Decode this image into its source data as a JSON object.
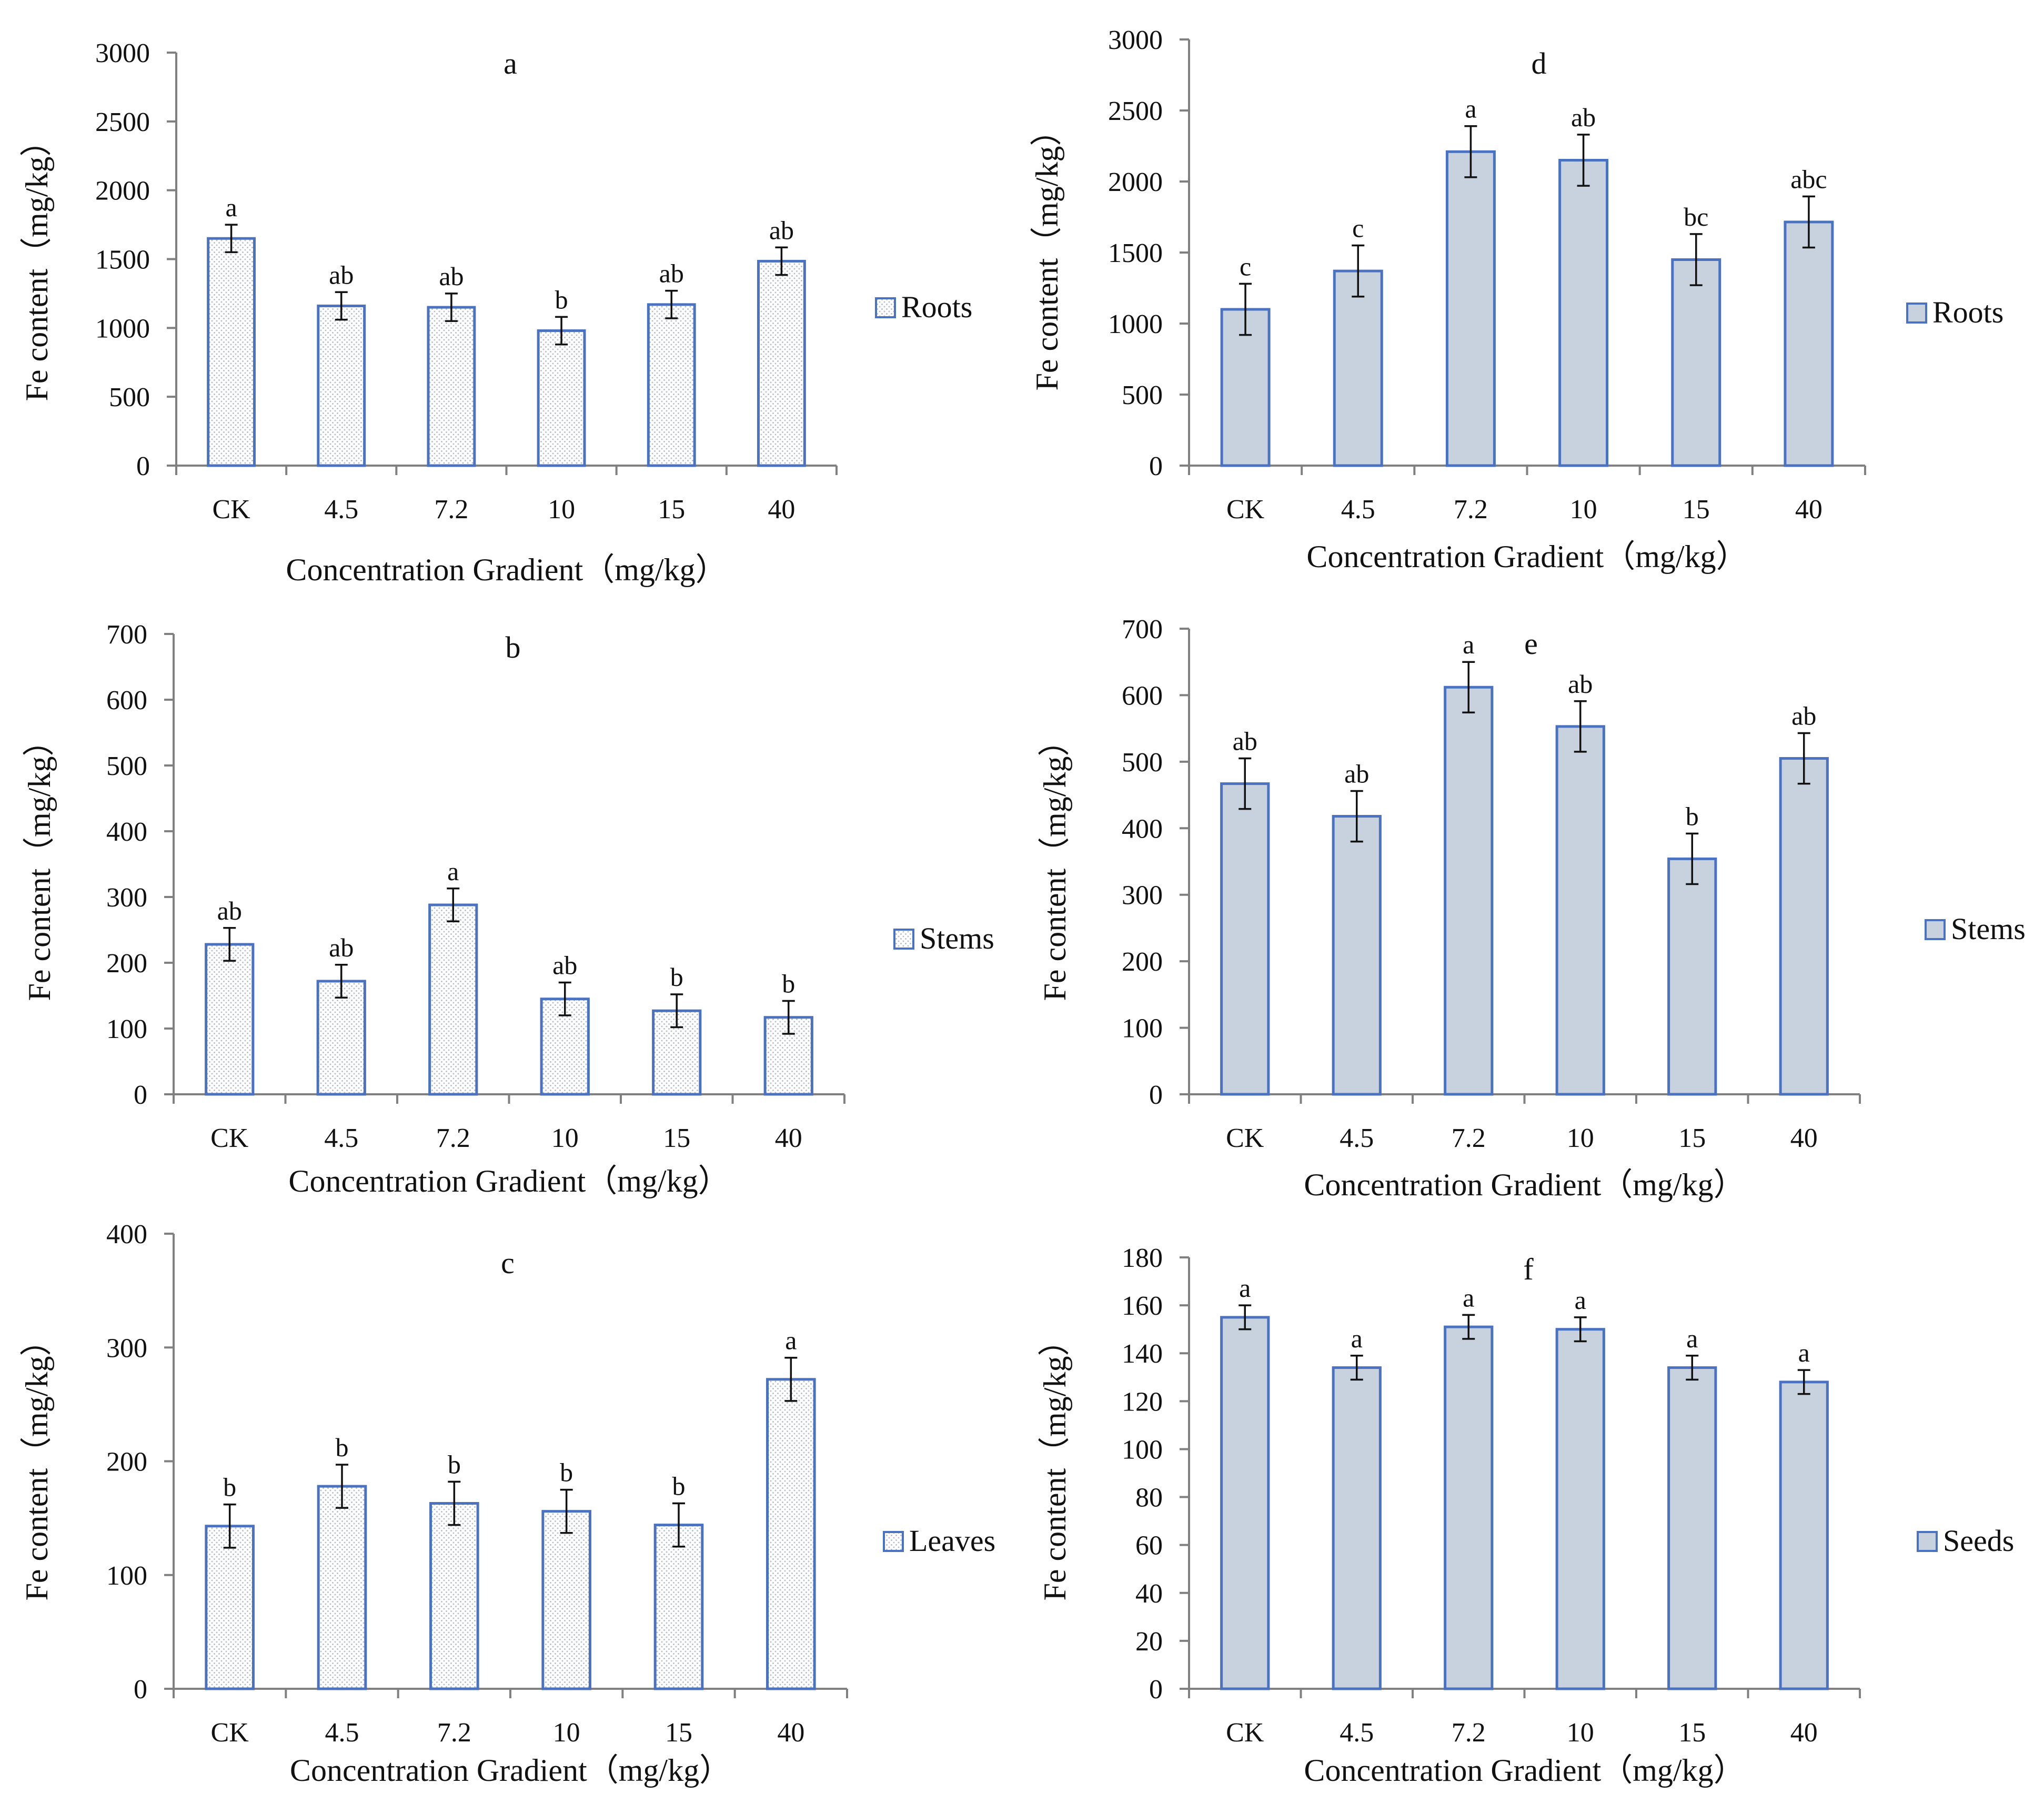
{
  "common": {
    "categories": [
      "CK",
      "4.5",
      "7.2",
      "10",
      "15",
      "40"
    ],
    "xlabel": "Concentration Gradient（mg/kg）",
    "ylabel": "Fe content（mg/kg）"
  },
  "colors": {
    "bar_stroke": "#4a72c0",
    "hatched_fill": "#ffffff",
    "hatch_dot": "#b8c0cc",
    "solid_fill": "#c8d2de"
  },
  "chart_data": [
    {
      "id": "a",
      "type": "bar",
      "title": "a",
      "fill": "hatched",
      "categories": [
        "CK",
        "4.5",
        "7.2",
        "10",
        "15",
        "40"
      ],
      "series": [
        {
          "name": "Roots",
          "values": [
            1650,
            1160,
            1150,
            980,
            1170,
            1485
          ],
          "errors": [
            100,
            100,
            100,
            100,
            100,
            100
          ],
          "labels": [
            "a",
            "ab",
            "ab",
            "b",
            "ab",
            "ab"
          ]
        }
      ],
      "ylim": [
        0,
        3000
      ],
      "yticks": [
        "0",
        "500",
        "1000",
        "1500",
        "2000",
        "2500",
        "3000"
      ],
      "xlabel": "Concentration Gradient（mg/kg）",
      "ylabel": "Fe content（mg/kg）",
      "legend": "right",
      "grid": false
    },
    {
      "id": "b",
      "type": "bar",
      "title": "b",
      "fill": "hatched",
      "categories": [
        "CK",
        "4.5",
        "7.2",
        "10",
        "15",
        "40"
      ],
      "series": [
        {
          "name": "Stems",
          "values": [
            228,
            172,
            288,
            145,
            127,
            117
          ],
          "errors": [
            25,
            25,
            25,
            25,
            25,
            25
          ],
          "labels": [
            "ab",
            "ab",
            "a",
            "ab",
            "b",
            "b"
          ]
        }
      ],
      "ylim": [
        0,
        700
      ],
      "yticks": [
        "0",
        "100",
        "200",
        "300",
        "400",
        "500",
        "600",
        "700"
      ],
      "xlabel": "Concentration Gradient（mg/kg）",
      "ylabel": "Fe content（mg/kg）",
      "legend": "right",
      "grid": false
    },
    {
      "id": "c",
      "type": "bar",
      "title": "c",
      "fill": "hatched",
      "categories": [
        "CK",
        "4.5",
        "7.2",
        "10",
        "15",
        "40"
      ],
      "series": [
        {
          "name": "Leaves",
          "values": [
            143,
            178,
            163,
            156,
            144,
            272
          ],
          "errors": [
            19,
            19,
            19,
            19,
            19,
            19
          ],
          "labels": [
            "b",
            "b",
            "b",
            "b",
            "b",
            "a"
          ]
        }
      ],
      "ylim": [
        0,
        400
      ],
      "yticks": [
        "0",
        "100",
        "200",
        "300",
        "400"
      ],
      "xlabel": "Concentration Gradient（mg/kg）",
      "ylabel": "Fe content（mg/kg）",
      "legend": "right",
      "grid": false
    },
    {
      "id": "d",
      "type": "bar",
      "title": "d",
      "fill": "solid",
      "categories": [
        "CK",
        "4.5",
        "7.2",
        "10",
        "15",
        "40"
      ],
      "series": [
        {
          "name": "Roots",
          "values": [
            1100,
            1370,
            2210,
            2150,
            1450,
            1715
          ],
          "errors": [
            180,
            180,
            180,
            180,
            180,
            180
          ],
          "labels": [
            "c",
            "c",
            "a",
            "ab",
            "bc",
            "abc"
          ]
        }
      ],
      "ylim": [
        0,
        3000
      ],
      "yticks": [
        "0",
        "500",
        "1000",
        "1500",
        "2000",
        "2500",
        "3000"
      ],
      "xlabel": "Concentration Gradient（mg/kg）",
      "ylabel": "Fe content（mg/kg）",
      "legend": "right",
      "grid": false
    },
    {
      "id": "e",
      "type": "bar",
      "title": "e",
      "fill": "solid",
      "categories": [
        "CK",
        "4.5",
        "7.2",
        "10",
        "15",
        "40"
      ],
      "series": [
        {
          "name": "Stems",
          "values": [
            467,
            418,
            612,
            553,
            354,
            505
          ],
          "errors": [
            38,
            38,
            38,
            38,
            38,
            38
          ],
          "labels": [
            "ab",
            "ab",
            "a",
            "ab",
            "b",
            "ab"
          ]
        }
      ],
      "ylim": [
        0,
        700
      ],
      "yticks": [
        "0",
        "100",
        "200",
        "300",
        "400",
        "500",
        "600",
        "700"
      ],
      "xlabel": "Concentration Gradient（mg/kg）",
      "ylabel": "Fe content（mg/kg）",
      "legend": "right",
      "grid": false
    },
    {
      "id": "f",
      "type": "bar",
      "title": "f",
      "fill": "solid",
      "categories": [
        "CK",
        "4.5",
        "7.2",
        "10",
        "15",
        "40"
      ],
      "series": [
        {
          "name": "Seeds",
          "values": [
            155,
            134,
            151,
            150,
            134,
            128
          ],
          "errors": [
            5,
            5,
            5,
            5,
            5,
            5
          ],
          "labels": [
            "a",
            "a",
            "a",
            "a",
            "a",
            "a"
          ]
        }
      ],
      "ylim": [
        0,
        180
      ],
      "yticks": [
        "0",
        "20",
        "40",
        "60",
        "80",
        "100",
        "120",
        "140",
        "160",
        "180"
      ],
      "xlabel": "Concentration Gradient（mg/kg）",
      "ylabel": "Fe content（mg/kg）",
      "legend": "right",
      "grid": false
    }
  ]
}
